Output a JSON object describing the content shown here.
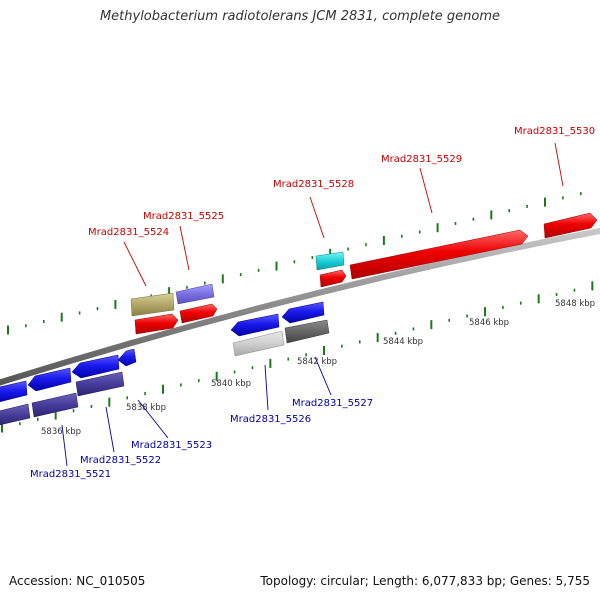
{
  "title": "Methylobacterium radiotolerans JCM 2831, complete genome",
  "footer": {
    "accession": "Accession: NC_010505",
    "summary": "Topology: circular; Length: 6,077,833 bp; Genes: 5,755"
  },
  "colors": {
    "plus_label": "#cc0000",
    "minus_label": "#0000aa",
    "tick": "#1a7a1a",
    "backbone": "#8a8a8a"
  },
  "scale_labels": [
    "5836 kbp",
    "5838 kbp",
    "5840 kbp",
    "5842 kbp",
    "5844 kbp",
    "5846 kbp",
    "5848 kbp"
  ],
  "gene_labels": {
    "plus": [
      "Mrad2831_5524",
      "Mrad2831_5525",
      "Mrad2831_5528",
      "Mrad2831_5529",
      "Mrad2831_5530"
    ],
    "minus": [
      "Mrad2831_5521",
      "Mrad2831_5522",
      "Mrad2831_5523",
      "Mrad2831_5526",
      "Mrad2831_5527"
    ]
  }
}
